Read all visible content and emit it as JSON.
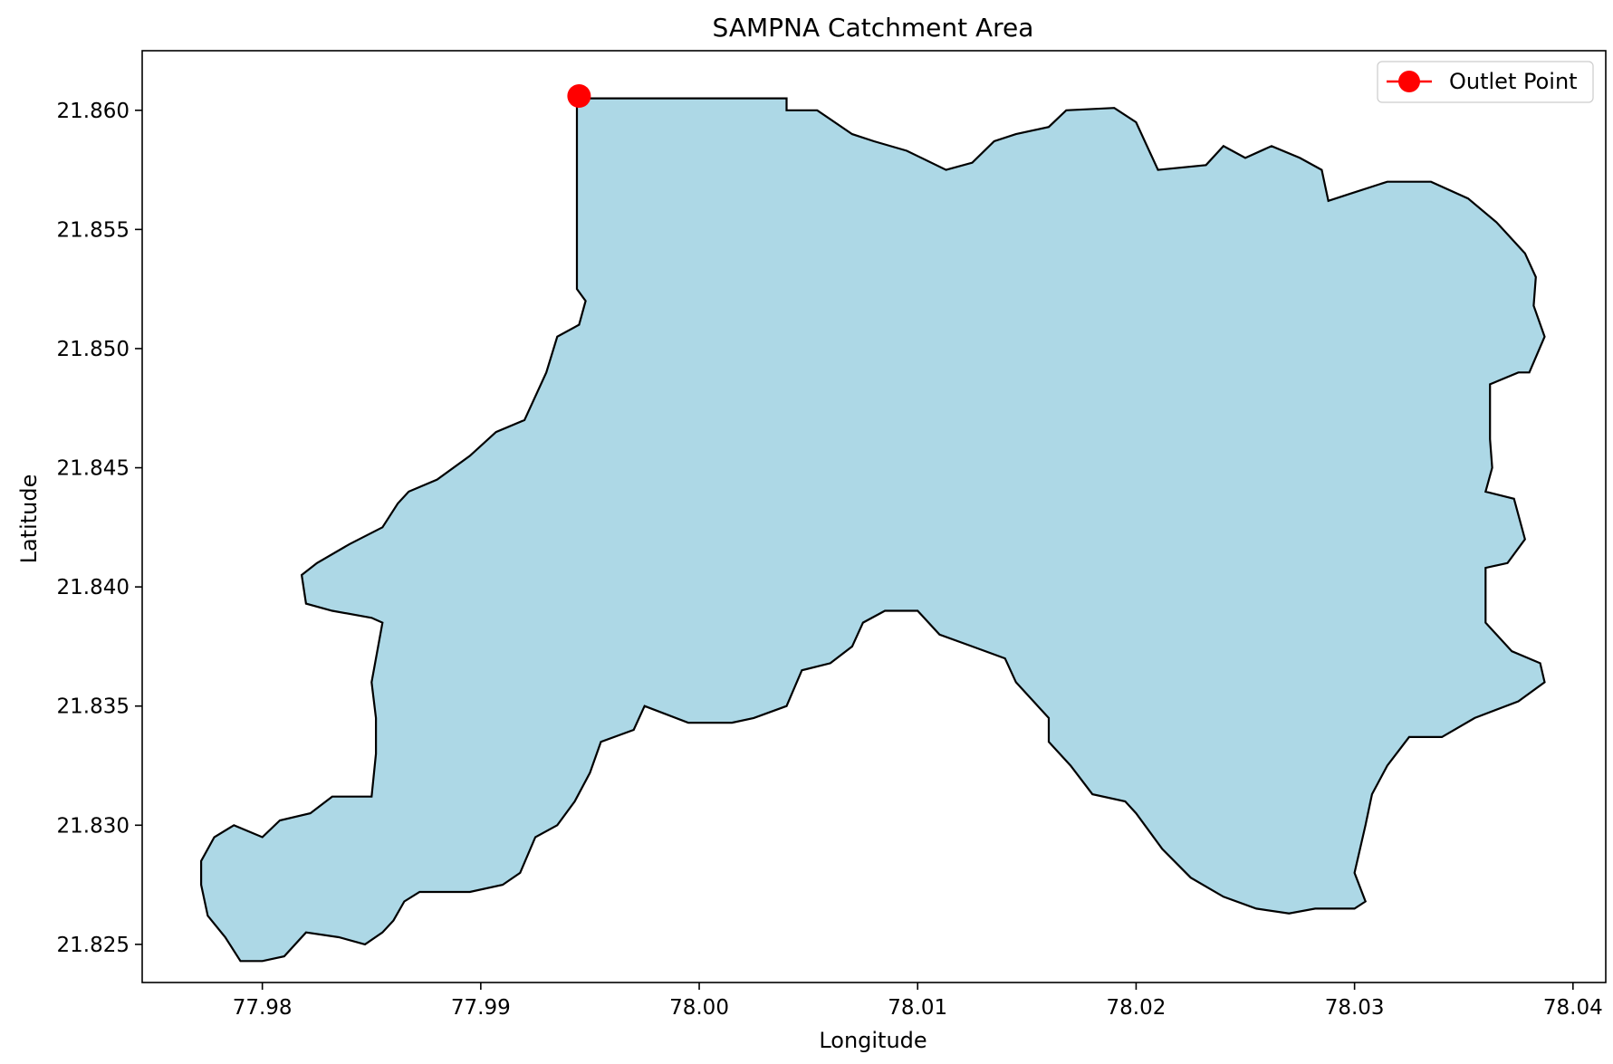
{
  "chart_data": {
    "type": "map",
    "title": "SAMPNA Catchment Area",
    "xlabel": "Longitude",
    "ylabel": "Latitude",
    "xlim": [
      77.9745,
      78.0415
    ],
    "ylim": [
      21.8234,
      21.8625
    ],
    "x_ticks": [
      77.98,
      77.99,
      78.0,
      78.01,
      78.02,
      78.03,
      78.04
    ],
    "x_tick_labels": [
      "77.98",
      "77.99",
      "78.00",
      "78.01",
      "78.02",
      "78.03",
      "78.04"
    ],
    "y_ticks": [
      21.825,
      21.83,
      21.835,
      21.84,
      21.845,
      21.85,
      21.855,
      21.86
    ],
    "y_tick_labels": [
      "21.825",
      "21.830",
      "21.835",
      "21.840",
      "21.845",
      "21.850",
      "21.855",
      "21.860"
    ],
    "grid": false,
    "legend_position": "top-right",
    "legend": [
      {
        "label": "Outlet Point",
        "color": "#ff0000",
        "marker": "circle"
      }
    ],
    "catchment": {
      "fill_color": "#add8e6",
      "edge_color": "#000000",
      "boundary": [
        [
          77.9944,
          21.8605
        ],
        [
          78.004,
          21.8605
        ],
        [
          78.004,
          21.86
        ],
        [
          78.0054,
          21.86
        ],
        [
          78.007,
          21.859
        ],
        [
          78.008,
          21.8587
        ],
        [
          78.0095,
          21.8583
        ],
        [
          78.0113,
          21.8575
        ],
        [
          78.0125,
          21.8578
        ],
        [
          78.0135,
          21.8587
        ],
        [
          78.0145,
          21.859
        ],
        [
          78.016,
          21.8593
        ],
        [
          78.0168,
          21.86
        ],
        [
          78.019,
          21.8601
        ],
        [
          78.02,
          21.8595
        ],
        [
          78.021,
          21.8575
        ],
        [
          78.0232,
          21.8577
        ],
        [
          78.024,
          21.8585
        ],
        [
          78.025,
          21.858
        ],
        [
          78.0262,
          21.8585
        ],
        [
          78.0275,
          21.858
        ],
        [
          78.0285,
          21.8575
        ],
        [
          78.0288,
          21.8562
        ],
        [
          78.0298,
          21.8565
        ],
        [
          78.0315,
          21.857
        ],
        [
          78.0335,
          21.857
        ],
        [
          78.0352,
          21.8563
        ],
        [
          78.0365,
          21.8553
        ],
        [
          78.0378,
          21.854
        ],
        [
          78.0383,
          21.853
        ],
        [
          78.0382,
          21.8518
        ],
        [
          78.0387,
          21.8505
        ],
        [
          78.038,
          21.849
        ],
        [
          78.0375,
          21.849
        ],
        [
          78.0362,
          21.8485
        ],
        [
          78.0362,
          21.8462
        ],
        [
          78.0363,
          21.845
        ],
        [
          78.036,
          21.844
        ],
        [
          78.0373,
          21.8437
        ],
        [
          78.0378,
          21.842
        ],
        [
          78.037,
          21.841
        ],
        [
          78.036,
          21.8408
        ],
        [
          78.036,
          21.8385
        ],
        [
          78.0372,
          21.8373
        ],
        [
          78.0385,
          21.8368
        ],
        [
          78.0387,
          21.836
        ],
        [
          78.0375,
          21.8352
        ],
        [
          78.0355,
          21.8345
        ],
        [
          78.034,
          21.8337
        ],
        [
          78.0325,
          21.8337
        ],
        [
          78.0315,
          21.8325
        ],
        [
          78.0308,
          21.8313
        ],
        [
          78.0305,
          21.83
        ],
        [
          78.03,
          21.828
        ],
        [
          78.0305,
          21.8268
        ],
        [
          78.03,
          21.8265
        ],
        [
          78.0282,
          21.8265
        ],
        [
          78.027,
          21.8263
        ],
        [
          78.0255,
          21.8265
        ],
        [
          78.024,
          21.827
        ],
        [
          78.0225,
          21.8278
        ],
        [
          78.0212,
          21.829
        ],
        [
          78.02,
          21.8305
        ],
        [
          78.0195,
          21.831
        ],
        [
          78.018,
          21.8313
        ],
        [
          78.017,
          21.8325
        ],
        [
          78.016,
          21.8335
        ],
        [
          78.016,
          21.8345
        ],
        [
          78.0155,
          21.835
        ],
        [
          78.0145,
          21.836
        ],
        [
          78.014,
          21.837
        ],
        [
          78.0125,
          21.8375
        ],
        [
          78.011,
          21.838
        ],
        [
          78.01,
          21.839
        ],
        [
          78.0085,
          21.839
        ],
        [
          78.0075,
          21.8385
        ],
        [
          78.007,
          21.8375
        ],
        [
          78.006,
          21.8368
        ],
        [
          78.0047,
          21.8365
        ],
        [
          78.004,
          21.835
        ],
        [
          78.0025,
          21.8345
        ],
        [
          78.0015,
          21.8343
        ],
        [
          77.9995,
          21.8343
        ],
        [
          77.9975,
          21.835
        ],
        [
          77.997,
          21.834
        ],
        [
          77.9955,
          21.8335
        ],
        [
          77.995,
          21.8322
        ],
        [
          77.9943,
          21.831
        ],
        [
          77.9935,
          21.83
        ],
        [
          77.9925,
          21.8295
        ],
        [
          77.9918,
          21.828
        ],
        [
          77.991,
          21.8275
        ],
        [
          77.9895,
          21.8272
        ],
        [
          77.9872,
          21.8272
        ],
        [
          77.9865,
          21.8268
        ],
        [
          77.986,
          21.826
        ],
        [
          77.9855,
          21.8255
        ],
        [
          77.9847,
          21.825
        ],
        [
          77.9835,
          21.8253
        ],
        [
          77.982,
          21.8255
        ],
        [
          77.981,
          21.8245
        ],
        [
          77.98,
          21.8243
        ],
        [
          77.979,
          21.8243
        ],
        [
          77.9783,
          21.8253
        ],
        [
          77.9775,
          21.8262
        ],
        [
          77.9772,
          21.8275
        ],
        [
          77.9772,
          21.8285
        ],
        [
          77.9778,
          21.8295
        ],
        [
          77.9787,
          21.83
        ],
        [
          77.98,
          21.8295
        ],
        [
          77.9808,
          21.8302
        ],
        [
          77.9822,
          21.8305
        ],
        [
          77.9832,
          21.8312
        ],
        [
          77.985,
          21.8312
        ],
        [
          77.9852,
          21.833
        ],
        [
          77.9852,
          21.8345
        ],
        [
          77.985,
          21.836
        ],
        [
          77.9853,
          21.8375
        ],
        [
          77.9855,
          21.8385
        ],
        [
          77.985,
          21.8387
        ],
        [
          77.9832,
          21.839
        ],
        [
          77.982,
          21.8393
        ],
        [
          77.9818,
          21.8405
        ],
        [
          77.9825,
          21.841
        ],
        [
          77.984,
          21.8418
        ],
        [
          77.9855,
          21.8425
        ],
        [
          77.9862,
          21.8435
        ],
        [
          77.9867,
          21.844
        ],
        [
          77.988,
          21.8445
        ],
        [
          77.9895,
          21.8455
        ],
        [
          77.9907,
          21.8465
        ],
        [
          77.992,
          21.847
        ],
        [
          77.993,
          21.849
        ],
        [
          77.9935,
          21.8505
        ],
        [
          77.9945,
          21.851
        ],
        [
          77.9948,
          21.852
        ],
        [
          77.9944,
          21.8525
        ],
        [
          77.9944,
          21.8605
        ]
      ]
    },
    "outlet_point": {
      "lon": 77.9945,
      "lat": 21.8606
    }
  }
}
